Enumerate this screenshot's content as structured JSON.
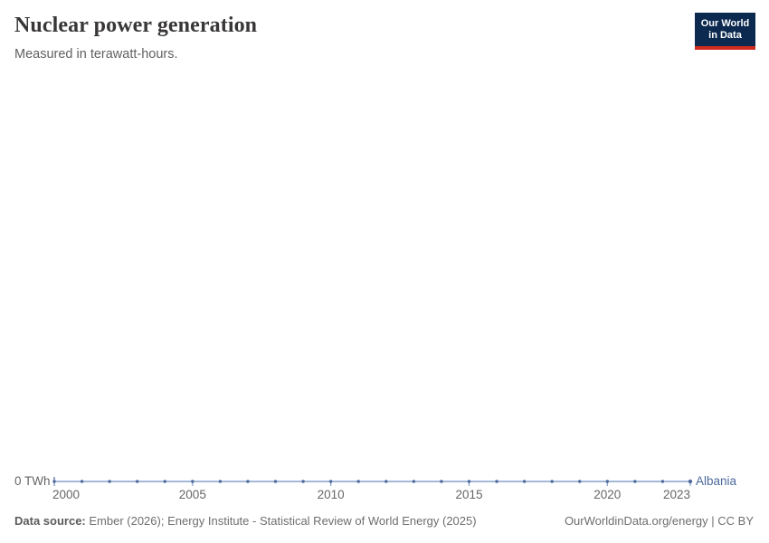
{
  "header": {
    "title": "Nuclear power generation",
    "subtitle": "Measured in terawatt-hours.",
    "logo": {
      "line1": "Our World",
      "line2": "in Data",
      "bg_color": "#0c2a50",
      "accent_color": "#d12b1f"
    }
  },
  "chart_data": {
    "type": "line",
    "title": "Nuclear power generation",
    "subtitle": "Measured in terawatt-hours.",
    "unit": "TWh",
    "x": [
      2000,
      2001,
      2002,
      2003,
      2004,
      2005,
      2006,
      2007,
      2008,
      2009,
      2010,
      2011,
      2012,
      2013,
      2014,
      2015,
      2016,
      2017,
      2018,
      2019,
      2020,
      2021,
      2022,
      2023
    ],
    "series": [
      {
        "name": "Albania",
        "color": "#4c6a9c",
        "line_color": "#85a0cc",
        "values": [
          0,
          0,
          0,
          0,
          0,
          0,
          0,
          0,
          0,
          0,
          0,
          0,
          0,
          0,
          0,
          0,
          0,
          0,
          0,
          0,
          0,
          0,
          0,
          0
        ]
      }
    ],
    "x_ticks": [
      2000,
      2005,
      2010,
      2015,
      2020,
      2023
    ],
    "y_axis_label": "0 TWh",
    "xlim": [
      2000,
      2023
    ],
    "ylim": [
      0,
      0
    ],
    "grid": false,
    "legend_position": "end-of-line"
  },
  "footer": {
    "source_label": "Data source:",
    "source_text": " Ember (2026); Energy Institute - Statistical Review of World Energy (2025)",
    "link_text": "OurWorldinData.org/energy | CC BY"
  }
}
